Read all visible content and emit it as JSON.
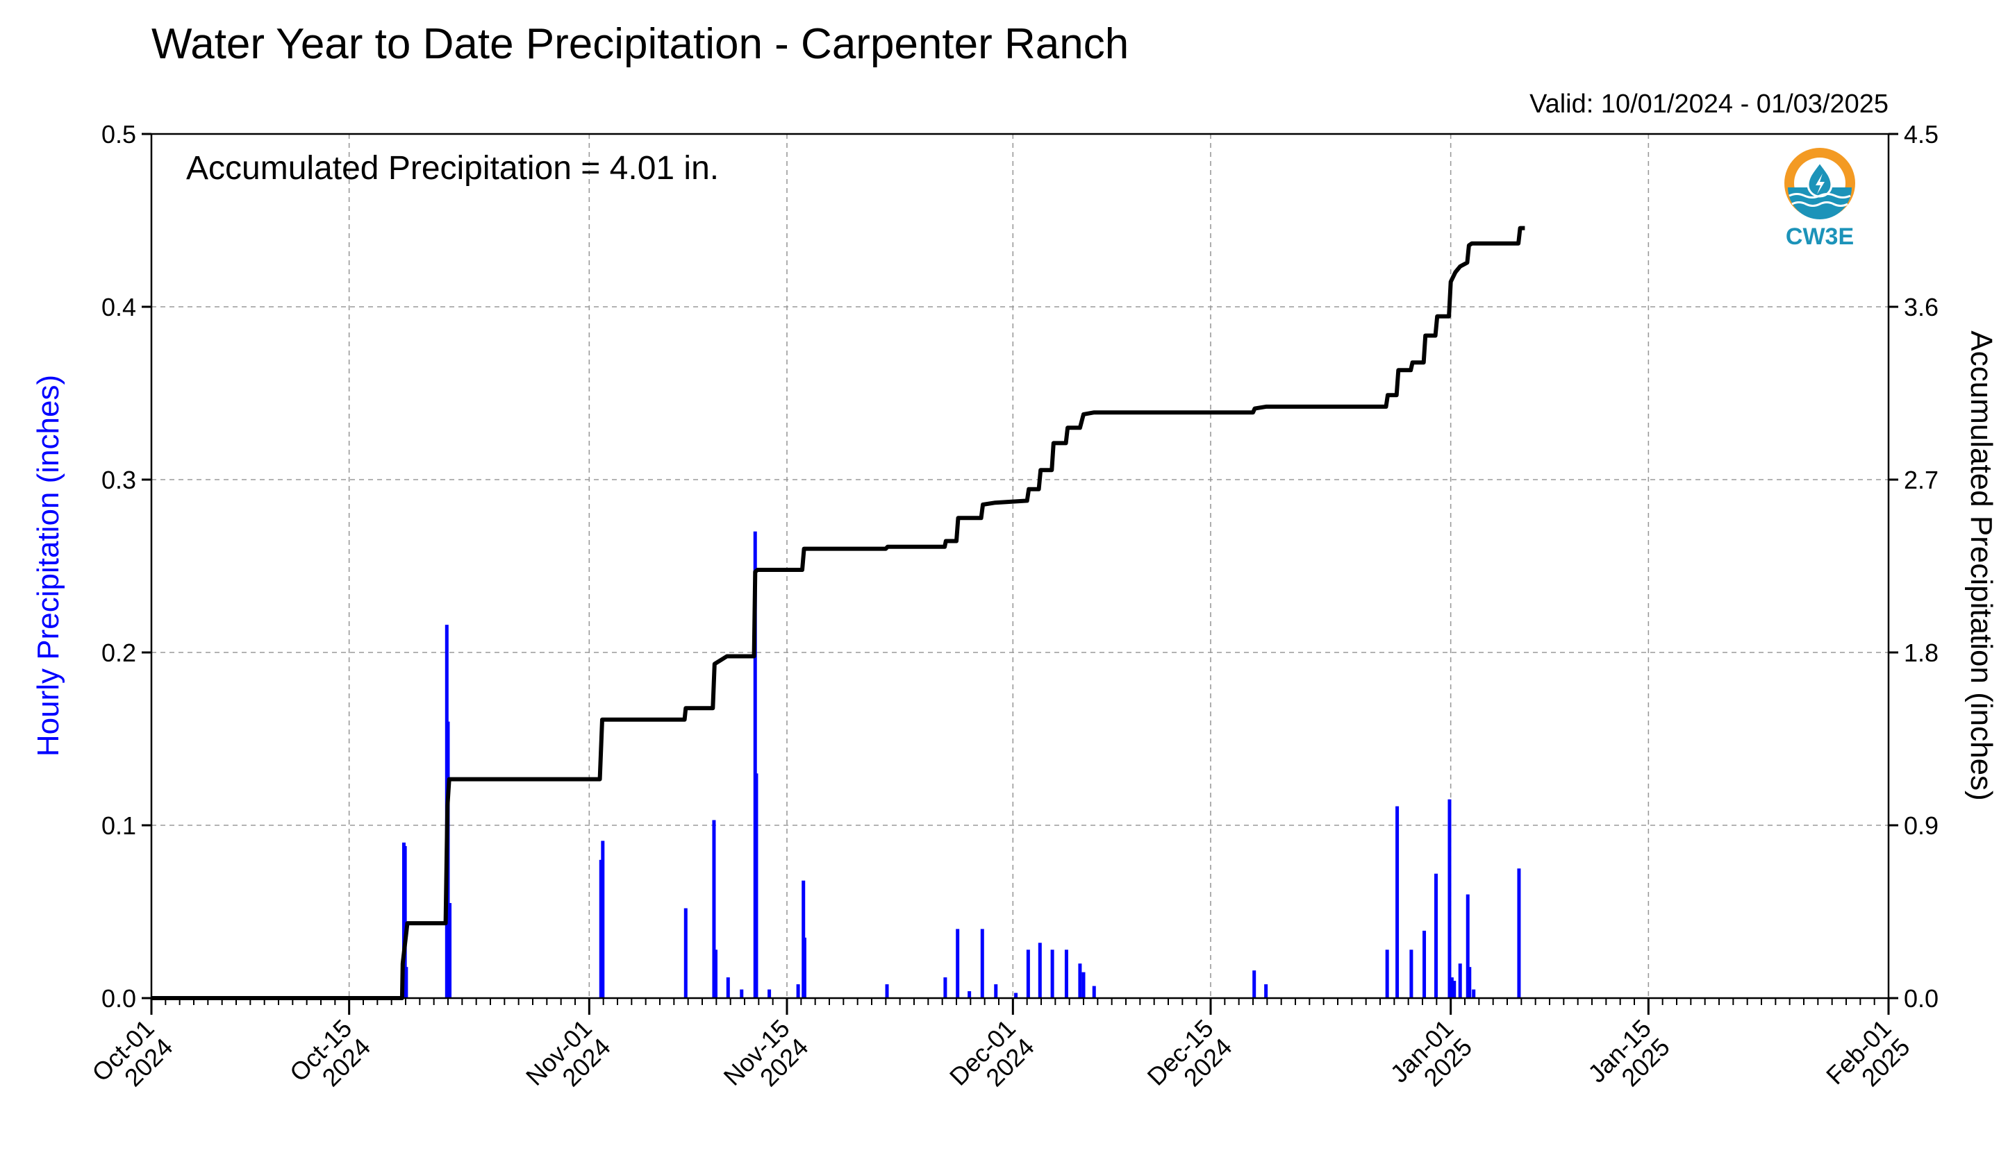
{
  "chart_data": {
    "type": "bar",
    "title": "Water Year to Date Precipitation - Carpenter Ranch",
    "subtitle": "Valid: 10/01/2024 - 01/03/2025",
    "annotation": "Accumulated Precipitation = 4.01 in.",
    "logo_text": "CW3E",
    "ylabel_left": "Hourly Precipitation (inches)",
    "ylabel_right": "Accumulated Precipitation (inches)",
    "ylim_left": [
      0,
      0.5
    ],
    "ylim_right": [
      0,
      4.5
    ],
    "yticks_left": [
      "0.0",
      "0.1",
      "0.2",
      "0.3",
      "0.4",
      "0.5"
    ],
    "yticks_right": [
      "0.0",
      "0.9",
      "1.8",
      "2.7",
      "3.6",
      "4.5"
    ],
    "x_start": "2024-10-01",
    "x_end": "2025-02-01",
    "grid": true,
    "x_major_ticks": [
      {
        "date": "2024-10-01",
        "line1": "Oct-01",
        "line2": "2024"
      },
      {
        "date": "2024-10-15",
        "line1": "Oct-15",
        "line2": "2024"
      },
      {
        "date": "2024-11-01",
        "line1": "Nov-01",
        "line2": "2024"
      },
      {
        "date": "2024-11-15",
        "line1": "Nov-15",
        "line2": "2024"
      },
      {
        "date": "2024-12-01",
        "line1": "Dec-01",
        "line2": "2024"
      },
      {
        "date": "2024-12-15",
        "line1": "Dec-15",
        "line2": "2024"
      },
      {
        "date": "2025-01-01",
        "line1": "Jan-01",
        "line2": "2025"
      },
      {
        "date": "2025-01-15",
        "line1": "Jan-15",
        "line2": "2025"
      },
      {
        "date": "2025-02-01",
        "line1": "Feb-01",
        "line2": "2025"
      }
    ],
    "series": [
      {
        "name": "Hourly Precipitation",
        "color": "#0000ff",
        "kind": "bar",
        "points": [
          [
            "2024-10-18 19:00",
            0.02
          ],
          [
            "2024-10-18 21:00",
            0.09
          ],
          [
            "2024-10-18 23:00",
            0.088
          ],
          [
            "2024-10-19 01:00",
            0.018
          ],
          [
            "2024-10-21 22:00",
            0.216
          ],
          [
            "2024-10-22 00:00",
            0.16
          ],
          [
            "2024-10-22 03:00",
            0.055
          ],
          [
            "2024-11-01 20:00",
            0.08
          ],
          [
            "2024-11-01 23:00",
            0.091
          ],
          [
            "2024-11-07 20:00",
            0.052
          ],
          [
            "2024-11-09 20:00",
            0.103
          ],
          [
            "2024-11-09 23:00",
            0.028
          ],
          [
            "2024-11-10 20:00",
            0.012
          ],
          [
            "2024-11-11 19:00",
            0.005
          ],
          [
            "2024-11-12 18:00",
            0.27
          ],
          [
            "2024-11-12 20:00",
            0.13
          ],
          [
            "2024-11-13 18:00",
            0.005
          ],
          [
            "2024-11-15 19:00",
            0.008
          ],
          [
            "2024-11-16 04:00",
            0.068
          ],
          [
            "2024-11-16 06:00",
            0.035
          ],
          [
            "2024-11-22 02:00",
            0.008
          ],
          [
            "2024-11-26 05:00",
            0.012
          ],
          [
            "2024-11-27 02:00",
            0.04
          ],
          [
            "2024-11-27 22:00",
            0.004
          ],
          [
            "2024-11-28 20:00",
            0.04
          ],
          [
            "2024-11-29 19:00",
            0.008
          ],
          [
            "2024-12-01 05:00",
            0.003
          ],
          [
            "2024-12-02 02:00",
            0.028
          ],
          [
            "2024-12-02 22:00",
            0.032
          ],
          [
            "2024-12-03 19:00",
            0.028
          ],
          [
            "2024-12-04 19:00",
            0.028
          ],
          [
            "2024-12-05 18:00",
            0.02
          ],
          [
            "2024-12-06 00:00",
            0.015
          ],
          [
            "2024-12-06 18:00",
            0.007
          ],
          [
            "2024-12-18 02:00",
            0.016
          ],
          [
            "2024-12-18 22:00",
            0.008
          ],
          [
            "2024-12-27 12:00",
            0.028
          ],
          [
            "2024-12-28 05:00",
            0.111
          ],
          [
            "2024-12-29 05:00",
            0.028
          ],
          [
            "2024-12-30 03:00",
            0.039
          ],
          [
            "2024-12-30 23:00",
            0.072
          ],
          [
            "2024-12-31 22:00",
            0.115
          ],
          [
            "2025-01-01 02:00",
            0.012
          ],
          [
            "2025-01-01 06:00",
            0.01
          ],
          [
            "2025-01-01 16:00",
            0.02
          ],
          [
            "2025-01-02 05:00",
            0.06
          ],
          [
            "2025-01-02 08:00",
            0.018
          ],
          [
            "2025-01-02 15:00",
            0.005
          ],
          [
            "2025-01-05 20:00",
            0.075
          ]
        ]
      },
      {
        "name": "Accumulated Precipitation",
        "color": "#000000",
        "kind": "step",
        "points": [
          [
            "2024-10-01 00:00",
            0.0
          ],
          [
            "2024-10-18 18:00",
            0.0
          ],
          [
            "2024-10-18 19:00",
            0.18
          ],
          [
            "2024-10-19 03:00",
            0.39
          ],
          [
            "2024-10-21 20:00",
            0.39
          ],
          [
            "2024-10-21 23:00",
            1.0
          ],
          [
            "2024-10-22 02:00",
            1.14
          ],
          [
            "2024-11-01 18:00",
            1.14
          ],
          [
            "2024-11-01 22:00",
            1.45
          ],
          [
            "2024-11-07 18:00",
            1.45
          ],
          [
            "2024-11-07 20:00",
            1.51
          ],
          [
            "2024-11-09 18:00",
            1.51
          ],
          [
            "2024-11-09 21:00",
            1.74
          ],
          [
            "2024-11-10 18:00",
            1.78
          ],
          [
            "2024-11-12 16:00",
            1.78
          ],
          [
            "2024-11-12 18:00",
            2.22
          ],
          [
            "2024-11-12 22:00",
            2.23
          ],
          [
            "2024-11-16 02:00",
            2.23
          ],
          [
            "2024-11-16 05:00",
            2.34
          ],
          [
            "2024-11-22 00:00",
            2.34
          ],
          [
            "2024-11-22 03:00",
            2.35
          ],
          [
            "2024-11-26 04:00",
            2.35
          ],
          [
            "2024-11-26 06:00",
            2.38
          ],
          [
            "2024-11-27 00:00",
            2.38
          ],
          [
            "2024-11-27 03:00",
            2.5
          ],
          [
            "2024-11-28 18:00",
            2.5
          ],
          [
            "2024-11-28 21:00",
            2.57
          ],
          [
            "2024-11-29 18:00",
            2.58
          ],
          [
            "2024-12-02 00:00",
            2.59
          ],
          [
            "2024-12-02 03:00",
            2.65
          ],
          [
            "2024-12-02 20:00",
            2.65
          ],
          [
            "2024-12-02 23:00",
            2.75
          ],
          [
            "2024-12-03 18:00",
            2.75
          ],
          [
            "2024-12-03 21:00",
            2.89
          ],
          [
            "2024-12-04 18:00",
            2.89
          ],
          [
            "2024-12-04 21:00",
            2.97
          ],
          [
            "2024-12-05 18:00",
            2.97
          ],
          [
            "2024-12-06 00:00",
            3.04
          ],
          [
            "2024-12-06 18:00",
            3.05
          ],
          [
            "2024-12-18 00:00",
            3.05
          ],
          [
            "2024-12-18 03:00",
            3.07
          ],
          [
            "2024-12-18 22:00",
            3.08
          ],
          [
            "2024-12-27 10:00",
            3.08
          ],
          [
            "2024-12-27 13:00",
            3.14
          ],
          [
            "2024-12-28 04:00",
            3.14
          ],
          [
            "2024-12-28 07:00",
            3.27
          ],
          [
            "2024-12-29 04:00",
            3.27
          ],
          [
            "2024-12-29 07:00",
            3.31
          ],
          [
            "2024-12-30 02:00",
            3.31
          ],
          [
            "2024-12-30 05:00",
            3.45
          ],
          [
            "2024-12-30 22:00",
            3.45
          ],
          [
            "2024-12-31 01:00",
            3.55
          ],
          [
            "2024-12-31 21:00",
            3.55
          ],
          [
            "2025-01-01 00:00",
            3.73
          ],
          [
            "2025-01-01 08:00",
            3.78
          ],
          [
            "2025-01-01 16:00",
            3.81
          ],
          [
            "2025-01-02 04:00",
            3.83
          ],
          [
            "2025-01-02 07:00",
            3.92
          ],
          [
            "2025-01-02 12:00",
            3.93
          ],
          [
            "2025-01-05 19:00",
            3.93
          ],
          [
            "2025-01-05 22:00",
            4.01
          ],
          [
            "2025-01-06 06:00",
            4.01
          ]
        ]
      }
    ]
  }
}
